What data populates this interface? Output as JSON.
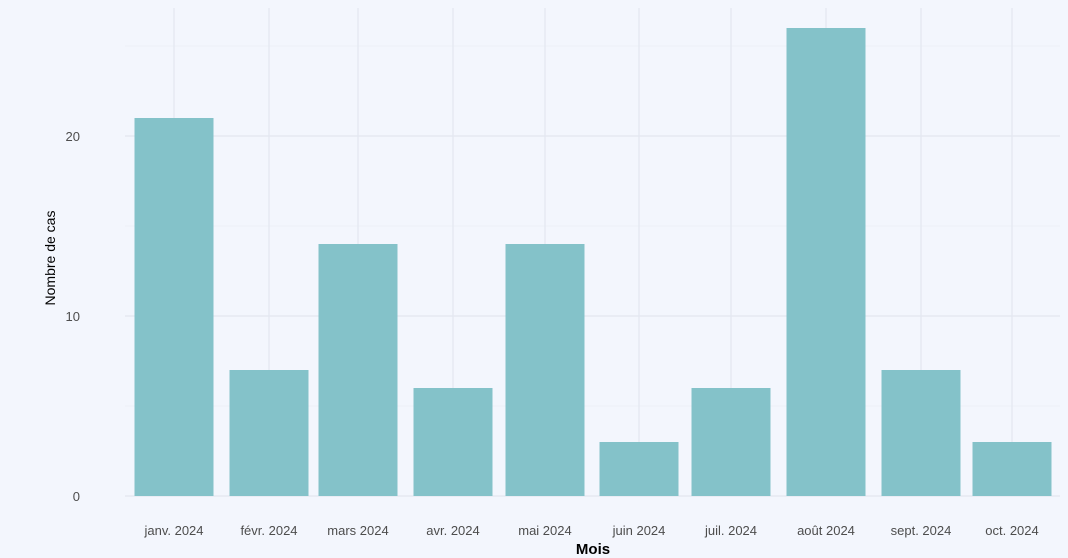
{
  "chart_data": {
    "type": "bar",
    "title": "",
    "xlabel": "Mois",
    "ylabel": "Nombre de cas",
    "categories": [
      "janv. 2024",
      "févr. 2024",
      "mars 2024",
      "avr. 2024",
      "mai 2024",
      "juin 2024",
      "juil. 2024",
      "août 2024",
      "sept. 2024",
      "oct. 2024"
    ],
    "values": [
      21,
      7,
      14,
      6,
      14,
      3,
      6,
      26,
      7,
      3
    ],
    "ylim": [
      0,
      27
    ],
    "yticks": [
      0,
      10,
      20
    ],
    "grid": true,
    "legend": "none",
    "colors": {
      "bar": "#84c2c9",
      "background": "#f3f6fd",
      "grid_major": "#e3e7f0",
      "grid_minor": "#ebeef6",
      "text": "#4d4d4d",
      "title_text": "#000000"
    }
  }
}
